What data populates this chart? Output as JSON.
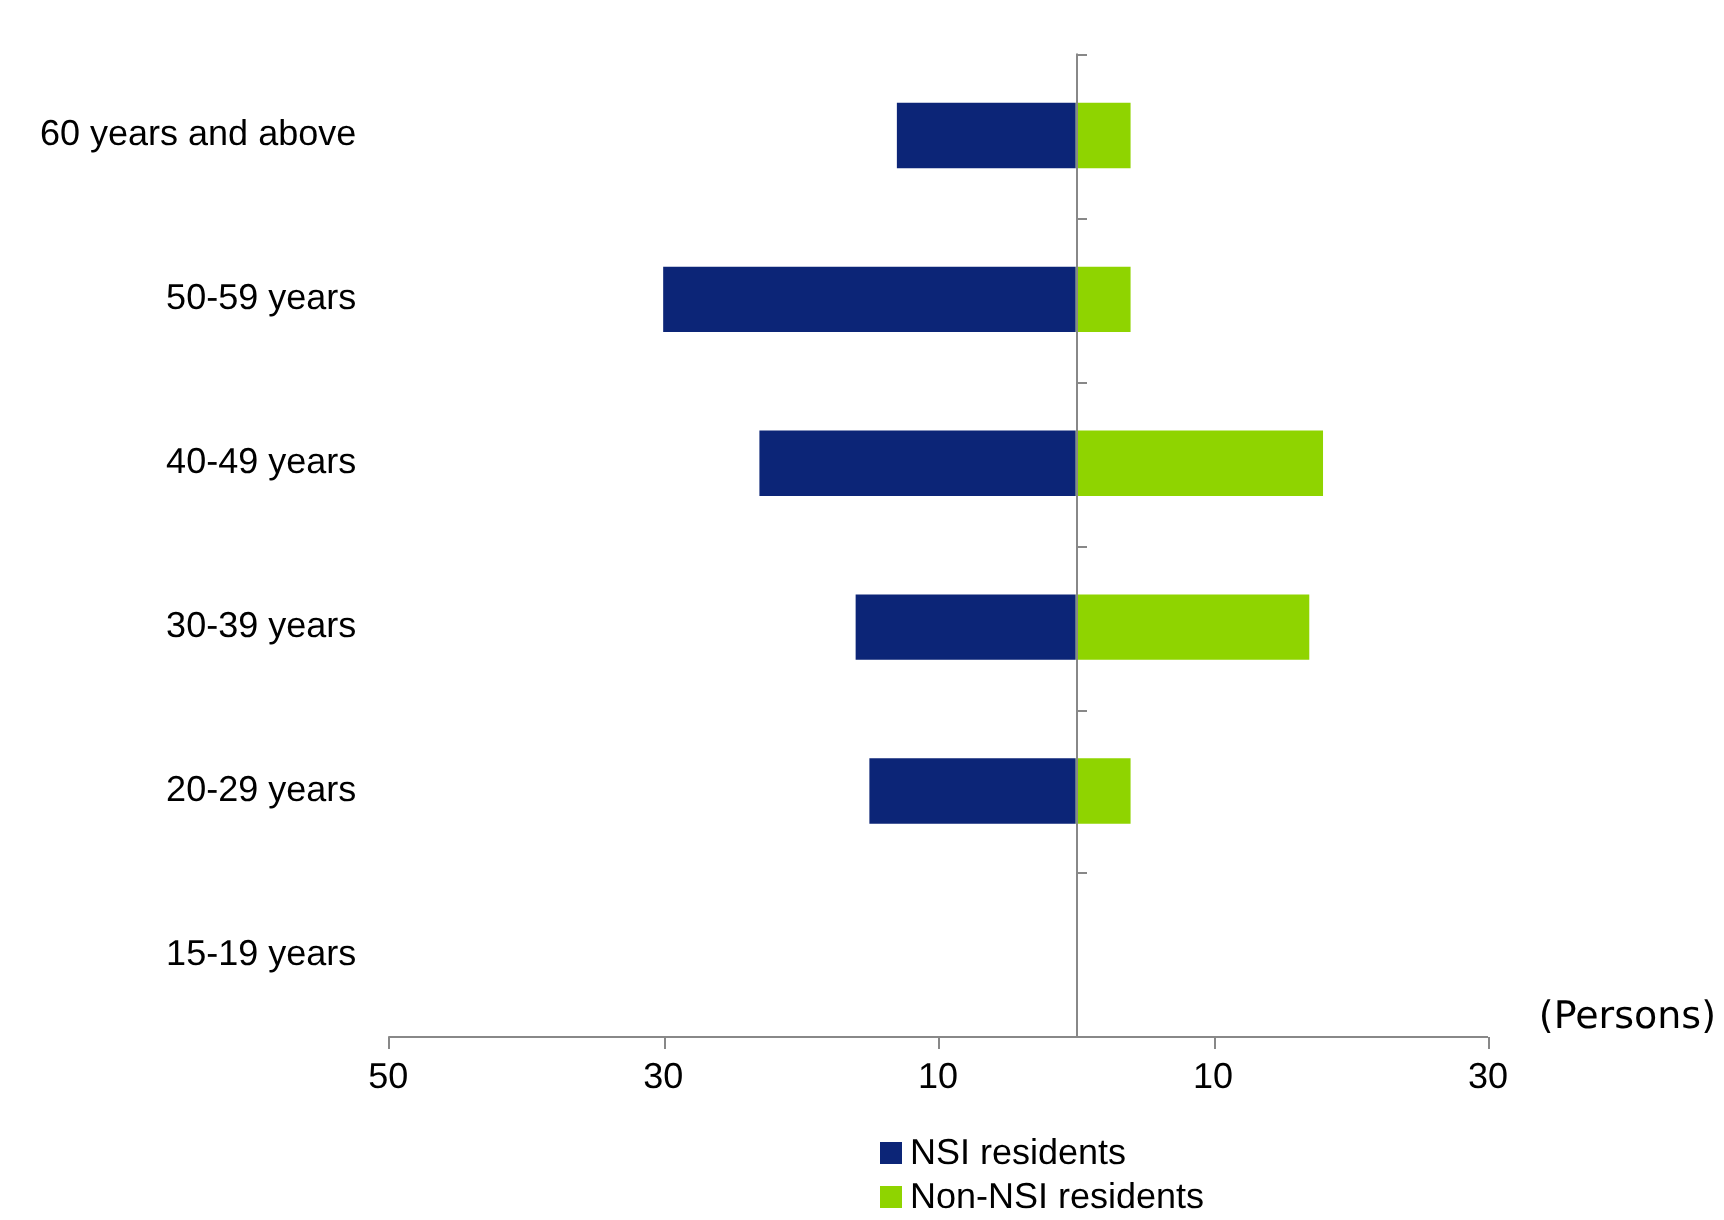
{
  "chart_data": {
    "type": "bar",
    "orientation": "horizontal",
    "stacked": true,
    "categories": [
      "60 years and above",
      "50-59 years",
      "40-49 years",
      "30-39 years",
      "20-29 years",
      "15-19 years"
    ],
    "series": [
      {
        "name": "NSI residents",
        "color": "#0c2577",
        "values": [
          -13,
          -30,
          -23,
          -16,
          -15,
          0
        ]
      },
      {
        "name": "Non-NSI residents",
        "color": "#8fd400",
        "values": [
          4,
          4,
          18,
          17,
          4,
          0
        ]
      }
    ],
    "xlim": [
      -50,
      30
    ],
    "xticks": [
      {
        "value": -50,
        "label": "50"
      },
      {
        "value": -30,
        "label": "30"
      },
      {
        "value": -10,
        "label": "10"
      },
      {
        "value": 10,
        "label": "10"
      },
      {
        "value": 30,
        "label": "30"
      }
    ],
    "xlabel": "(Persons)",
    "grid": false,
    "legend": "bottom"
  }
}
